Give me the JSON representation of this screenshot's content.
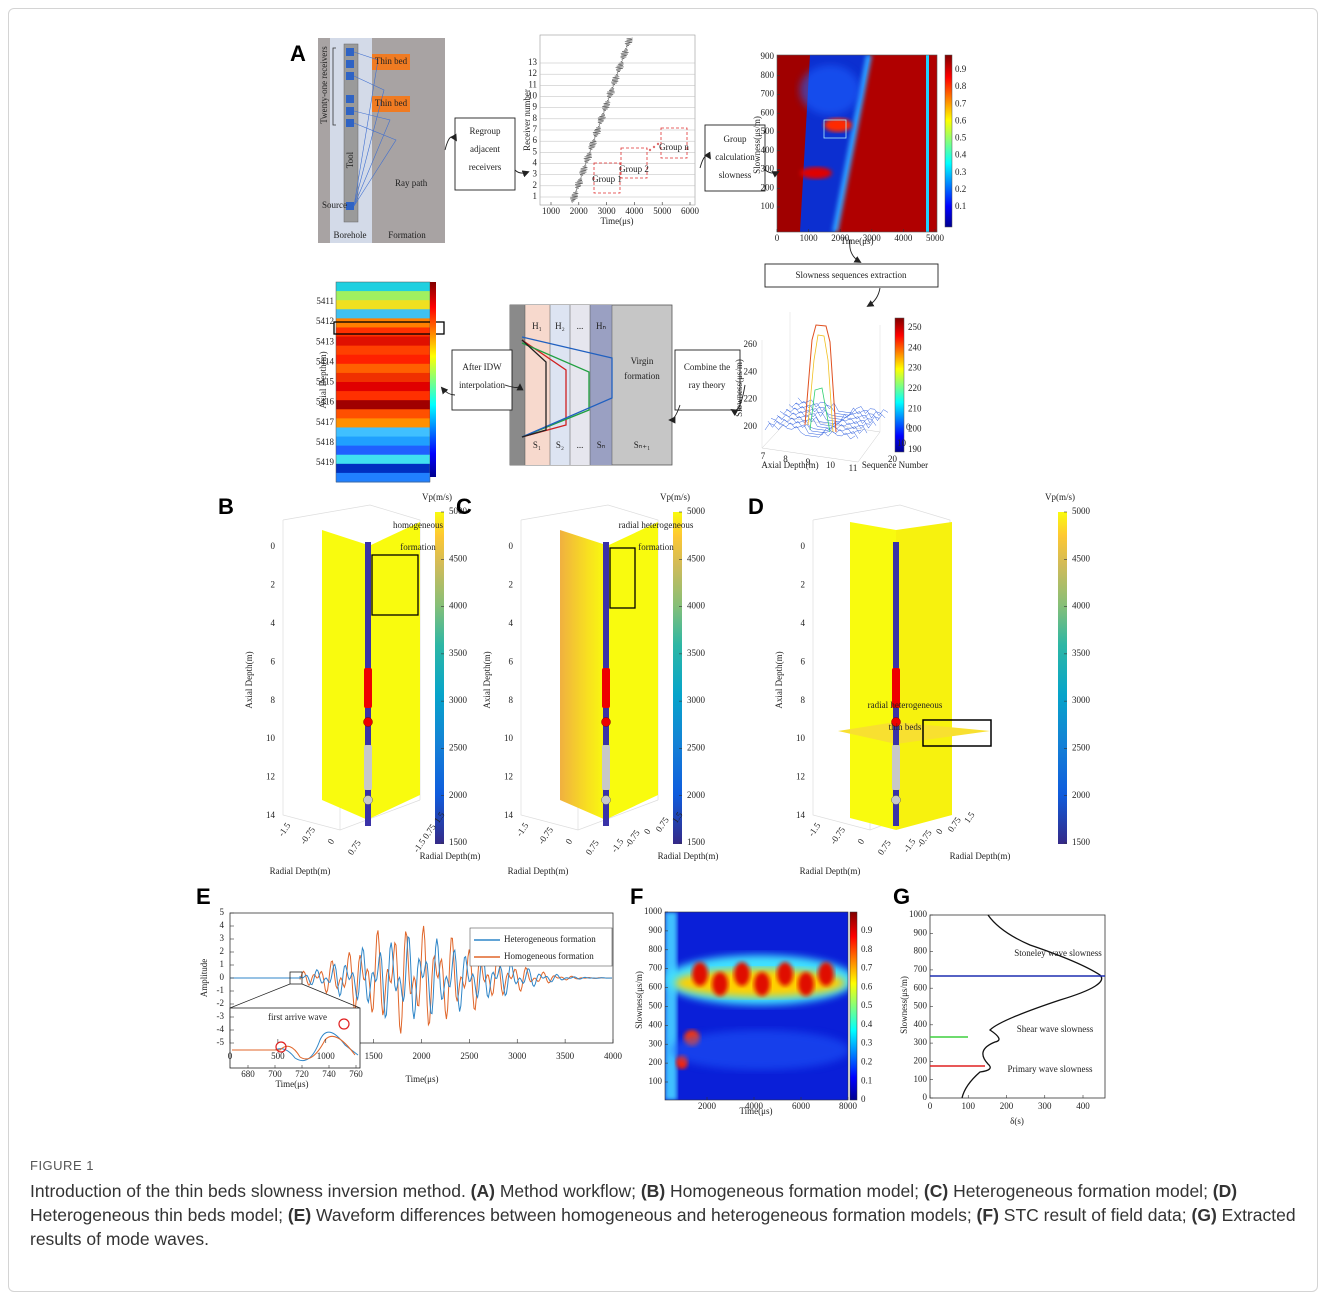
{
  "panels": {
    "A": {
      "label": "A",
      "borehole": {
        "receivers": "Twenty-one receivers",
        "thin_bed_1": "Thin bed",
        "thin_bed_2": "Thin bed",
        "tool": "Tool",
        "ray_path": "Ray path",
        "source": "Source",
        "borehole": "Borehole",
        "formation": "Formation"
      },
      "steps": [
        [
          "Regroup",
          "adjacent",
          "receivers"
        ],
        [
          "Group",
          "calculation",
          "slowness"
        ],
        [
          "Slowness sequences  extraction"
        ],
        [
          "Combine the",
          "ray theory"
        ],
        [
          "After IDW",
          "interpolation"
        ]
      ],
      "waveforms": {
        "ylabel": "Receiver number",
        "yticks": [
          1,
          2,
          3,
          4,
          5,
          6,
          7,
          8,
          9,
          10,
          11,
          12,
          13
        ],
        "xticks": [
          1000,
          2000,
          3000,
          4000,
          5000,
          6000
        ],
        "xlabel": "Time(μs)",
        "groups": [
          "Group 1",
          "Group 2",
          "Group n"
        ]
      },
      "stc": {
        "ylabel": "Slowness(μs/m)",
        "yticks": [
          100,
          200,
          300,
          400,
          500,
          600,
          700,
          800,
          900
        ],
        "xticks": [
          0,
          1000,
          2000,
          3000,
          4000,
          5000
        ],
        "xlabel": "Time(μs)",
        "cticks": [
          0.1,
          0.2,
          0.3,
          0.4,
          0.5,
          0.6,
          0.7,
          0.8,
          0.9
        ]
      },
      "surface": {
        "zlabel": "Slowness(μs/m)",
        "zticks": [
          200,
          220,
          240,
          260
        ],
        "xlabel": "Axial Depth(m)",
        "xticks": [
          7,
          8,
          9,
          10,
          11
        ],
        "ylabel": "Sequence Number",
        "yticks": [
          0,
          10,
          20
        ],
        "cticks": [
          190,
          200,
          210,
          220,
          230,
          240,
          250
        ]
      },
      "model": {
        "layers": [
          "H₁",
          "H₂",
          "...",
          "Hₙ"
        ],
        "slowness": [
          "S₁",
          "S₂",
          "...",
          "Sₙ",
          "Sₙ₊₁"
        ],
        "virgin": [
          "Virgin",
          "formation"
        ]
      },
      "heatmap": {
        "ylabel": "Axial Depth(m)",
        "yticks": [
          5411,
          5412,
          5413,
          5414,
          5415,
          5416,
          5417,
          5418,
          5419
        ]
      }
    },
    "B": {
      "label": "B",
      "cbar_title": "Vp(m/s)",
      "cticks": [
        1500,
        2000,
        2500,
        3000,
        3500,
        4000,
        4500,
        5000
      ],
      "zlabel": "Axial Depth(m)",
      "zticks": [
        0,
        2,
        4,
        6,
        8,
        10,
        12,
        14
      ],
      "xlabel": "Radial Depth(m)",
      "ylabel": "Radial Depth(m)",
      "xticks": [
        -1.5,
        -0.75,
        0,
        0.75
      ],
      "yticks": [
        -1.5,
        0.75,
        1.5
      ],
      "note": [
        "homogeneous",
        "formation"
      ]
    },
    "C": {
      "label": "C",
      "cbar_title": "Vp(m/s)",
      "cticks": [
        1500,
        2000,
        2500,
        3000,
        3500,
        4000,
        4500,
        5000
      ],
      "zlabel": "Axial Depth(m)",
      "zticks": [
        0,
        2,
        4,
        6,
        8,
        10,
        12,
        14
      ],
      "xlabel": "Radial Depth(m)",
      "ylabel": "Radial Depth(m)",
      "xticks": [
        -1.5,
        -0.75,
        0,
        0.75
      ],
      "yticks": [
        -1.5,
        -0.75,
        0,
        0.75,
        1.5
      ],
      "note": [
        "radial heterogeneous",
        "formation"
      ]
    },
    "D": {
      "label": "D",
      "cbar_title": "Vp(m/s)",
      "cticks": [
        1500,
        2000,
        2500,
        3000,
        3500,
        4000,
        4500,
        5000
      ],
      "zlabel": "Axial Depth(m)",
      "zticks": [
        0,
        2,
        4,
        6,
        8,
        10,
        12,
        14
      ],
      "xlabel": "Radial Depth(m)",
      "ylabel": "Radial Depth(m)",
      "xticks": [
        -1.5,
        -0.75,
        0,
        0.75
      ],
      "yticks": [
        -1.5,
        -0.75,
        0,
        0.75,
        1.5
      ],
      "note": [
        "radial heterogeneous",
        "thin beds"
      ]
    },
    "E": {
      "label": "E",
      "ylabel": "Amplitude",
      "yticks": [
        -5,
        -4,
        -3,
        -2,
        -1,
        0,
        1,
        2,
        3,
        4,
        5
      ],
      "xlabel": "Time(μs)",
      "xticks": [
        0,
        500,
        1000,
        1500,
        2000,
        2500,
        3000,
        3500,
        4000
      ],
      "legend": [
        {
          "name": "Heterogeneous formation",
          "color": "#2f86c8"
        },
        {
          "name": "Homogeneous formation",
          "color": "#e0662a"
        }
      ],
      "inset_title": "first arrive wave",
      "inset_xticks": [
        680,
        700,
        720,
        740,
        760
      ],
      "inset_xlabel": "Time(μs)"
    },
    "F": {
      "label": "F",
      "ylabel": "Slowness(μs/m)",
      "yticks": [
        100,
        200,
        300,
        400,
        500,
        600,
        700,
        800,
        900,
        1000
      ],
      "xlabel": "Time(μs)",
      "xticks": [
        2000,
        4000,
        6000,
        8000
      ],
      "cticks": [
        0,
        0.1,
        0.2,
        0.3,
        0.4,
        0.5,
        0.6,
        0.7,
        0.8,
        0.9
      ]
    },
    "G": {
      "label": "G",
      "ylabel": "Slowness(μs/m)",
      "yticks": [
        0,
        100,
        200,
        300,
        400,
        500,
        600,
        700,
        800,
        900,
        1000
      ],
      "xlabel": "δ(s)",
      "xticks": [
        0,
        100,
        200,
        300,
        400
      ],
      "modes": [
        {
          "name": "Stoneley wave slowness",
          "color": "#1f2fb0"
        },
        {
          "name": "Shear wave slowness",
          "color": "#3fcf3f"
        },
        {
          "name": "Primary wave slowness",
          "color": "#e02020"
        }
      ]
    }
  },
  "caption": {
    "figure": "FIGURE 1",
    "runs": [
      {
        "text": "Introduction of the thin beds slowness inversion method. "
      },
      {
        "text": "(A)",
        "bold": true
      },
      {
        "text": " Method workflow; "
      },
      {
        "text": "(B)",
        "bold": true
      },
      {
        "text": " Homogeneous formation model; "
      },
      {
        "text": "(C)",
        "bold": true
      },
      {
        "text": " Heterogeneous formation model; "
      },
      {
        "text": "(D)",
        "bold": true
      },
      {
        "text": " Heterogeneous thin beds model; "
      },
      {
        "text": "(E)",
        "bold": true
      },
      {
        "text": " Waveform differences between homogeneous and heterogeneous formation models; "
      },
      {
        "text": "(F)",
        "bold": true
      },
      {
        "text": " STC result of field data; "
      },
      {
        "text": "(G)",
        "bold": true
      },
      {
        "text": " Extracted results of mode waves."
      }
    ]
  }
}
